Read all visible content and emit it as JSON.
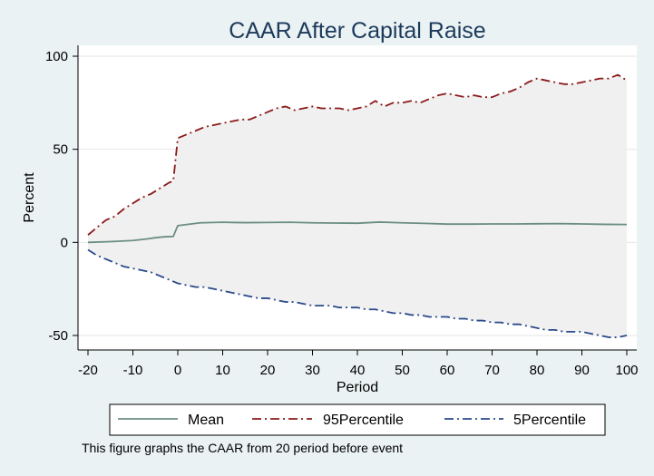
{
  "chart_data": {
    "type": "line",
    "title": "CAAR After Capital Raise",
    "xlabel": "Period",
    "ylabel": "Percent",
    "xlim": [
      -20,
      100
    ],
    "ylim": [
      -50,
      100
    ],
    "x_ticks": [
      -20,
      -10,
      0,
      10,
      20,
      30,
      40,
      50,
      60,
      70,
      80,
      90,
      100
    ],
    "y_ticks": [
      -50,
      0,
      50,
      100
    ],
    "grid": "horizontal",
    "legend_position": "bottom",
    "band": {
      "between": [
        "95Percentile",
        "5Percentile"
      ],
      "color": "#f0f0f0"
    },
    "series": [
      {
        "name": "Mean",
        "color": "#6b8e84",
        "dash": "solid",
        "points": [
          [
            -20,
            0
          ],
          [
            -15,
            0.4
          ],
          [
            -10,
            1.0
          ],
          [
            -7,
            1.8
          ],
          [
            -5,
            2.5
          ],
          [
            -3,
            3.0
          ],
          [
            -1,
            3.2
          ],
          [
            0,
            9.0
          ],
          [
            5,
            10.5
          ],
          [
            10,
            10.8
          ],
          [
            15,
            10.6
          ],
          [
            20,
            10.7
          ],
          [
            25,
            10.8
          ],
          [
            30,
            10.5
          ],
          [
            35,
            10.4
          ],
          [
            40,
            10.3
          ],
          [
            45,
            10.9
          ],
          [
            50,
            10.5
          ],
          [
            55,
            10.2
          ],
          [
            60,
            9.8
          ],
          [
            65,
            9.8
          ],
          [
            70,
            9.9
          ],
          [
            75,
            9.9
          ],
          [
            80,
            10.0
          ],
          [
            85,
            10.1
          ],
          [
            90,
            9.9
          ],
          [
            95,
            9.7
          ],
          [
            100,
            9.6
          ]
        ]
      },
      {
        "name": "95Percentile",
        "color": "#8b1a1a",
        "dash": "longdash-dot",
        "points": [
          [
            -20,
            4
          ],
          [
            -18,
            8
          ],
          [
            -16,
            12
          ],
          [
            -14,
            14
          ],
          [
            -12,
            18
          ],
          [
            -10,
            21
          ],
          [
            -8,
            24
          ],
          [
            -6,
            26
          ],
          [
            -4,
            29
          ],
          [
            -2,
            32
          ],
          [
            -1,
            33
          ],
          [
            0,
            56
          ],
          [
            2,
            58
          ],
          [
            4,
            60
          ],
          [
            6,
            62
          ],
          [
            8,
            63
          ],
          [
            10,
            64
          ],
          [
            12,
            65
          ],
          [
            14,
            66
          ],
          [
            16,
            66
          ],
          [
            18,
            68
          ],
          [
            20,
            70
          ],
          [
            22,
            72
          ],
          [
            24,
            73
          ],
          [
            26,
            71
          ],
          [
            28,
            72
          ],
          [
            30,
            73
          ],
          [
            32,
            72
          ],
          [
            34,
            72
          ],
          [
            36,
            72
          ],
          [
            38,
            71
          ],
          [
            40,
            72
          ],
          [
            42,
            73
          ],
          [
            44,
            76
          ],
          [
            46,
            73
          ],
          [
            48,
            75
          ],
          [
            50,
            75
          ],
          [
            52,
            76
          ],
          [
            54,
            75
          ],
          [
            56,
            77
          ],
          [
            58,
            79
          ],
          [
            60,
            80
          ],
          [
            62,
            79
          ],
          [
            64,
            78
          ],
          [
            66,
            79
          ],
          [
            68,
            78
          ],
          [
            70,
            78
          ],
          [
            72,
            80
          ],
          [
            74,
            81
          ],
          [
            76,
            83
          ],
          [
            78,
            86
          ],
          [
            80,
            88
          ],
          [
            82,
            87
          ],
          [
            84,
            86
          ],
          [
            86,
            85
          ],
          [
            88,
            85
          ],
          [
            90,
            86
          ],
          [
            92,
            87
          ],
          [
            94,
            88
          ],
          [
            96,
            88
          ],
          [
            98,
            90
          ],
          [
            100,
            87
          ]
        ]
      },
      {
        "name": "5Percentile",
        "color": "#2a4a8a",
        "dash": "longdash-dot",
        "points": [
          [
            -20,
            -4
          ],
          [
            -18,
            -7
          ],
          [
            -16,
            -9
          ],
          [
            -14,
            -11
          ],
          [
            -12,
            -13
          ],
          [
            -10,
            -14
          ],
          [
            -8,
            -15
          ],
          [
            -6,
            -16
          ],
          [
            -4,
            -18
          ],
          [
            -2,
            -20
          ],
          [
            0,
            -22
          ],
          [
            2,
            -23
          ],
          [
            4,
            -24
          ],
          [
            6,
            -24
          ],
          [
            8,
            -25
          ],
          [
            10,
            -26
          ],
          [
            12,
            -27
          ],
          [
            14,
            -28
          ],
          [
            16,
            -29
          ],
          [
            18,
            -30
          ],
          [
            20,
            -30
          ],
          [
            22,
            -31
          ],
          [
            24,
            -32
          ],
          [
            26,
            -32
          ],
          [
            28,
            -33
          ],
          [
            30,
            -34
          ],
          [
            32,
            -34
          ],
          [
            34,
            -34
          ],
          [
            36,
            -35
          ],
          [
            38,
            -35
          ],
          [
            40,
            -35
          ],
          [
            42,
            -36
          ],
          [
            44,
            -36
          ],
          [
            46,
            -37
          ],
          [
            48,
            -38
          ],
          [
            50,
            -38
          ],
          [
            52,
            -39
          ],
          [
            54,
            -39
          ],
          [
            56,
            -40
          ],
          [
            58,
            -40
          ],
          [
            60,
            -40
          ],
          [
            62,
            -41
          ],
          [
            64,
            -41
          ],
          [
            66,
            -42
          ],
          [
            68,
            -42
          ],
          [
            70,
            -43
          ],
          [
            72,
            -43
          ],
          [
            74,
            -44
          ],
          [
            76,
            -44
          ],
          [
            78,
            -45
          ],
          [
            80,
            -46
          ],
          [
            82,
            -47
          ],
          [
            84,
            -47
          ],
          [
            86,
            -48
          ],
          [
            88,
            -48
          ],
          [
            90,
            -48
          ],
          [
            92,
            -49
          ],
          [
            94,
            -50
          ],
          [
            96,
            -51
          ],
          [
            98,
            -51
          ],
          [
            100,
            -50
          ]
        ]
      }
    ],
    "note": "This figure graphs the CAAR from 20 period before event"
  }
}
